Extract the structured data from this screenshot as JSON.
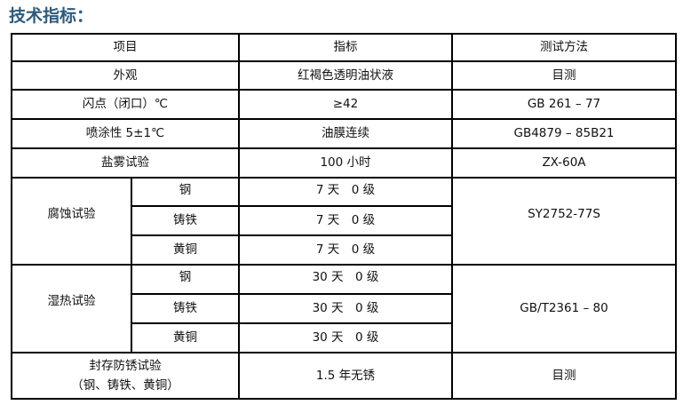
{
  "title": "技术指标：",
  "headers": [
    "项目",
    "指标",
    "测试方法"
  ],
  "rows": {
    "appearance": [
      "外观",
      "红褐色透明油状液",
      "目测"
    ],
    "flash": [
      "闪点（闭口）℃",
      "≥42",
      "GB 261 – 77"
    ],
    "spray": [
      "喷涂性 5±1℃",
      "油膜连续",
      "GB4879 – 85B21"
    ],
    "salt": [
      "盐雾试验",
      "100 小时",
      "ZX-60A"
    ]
  },
  "corrosion": {
    "label": "腐蚀试验",
    "method": "SY2752-77S",
    "items": [
      [
        "钢",
        "7 天　0 级"
      ],
      [
        "铸铁",
        "7 天　0 级"
      ],
      [
        "黄铜",
        "7 天　0 级"
      ]
    ]
  },
  "humidity": {
    "label": "湿热试验",
    "method": "GB/T2361 – 80",
    "items": [
      [
        "钢",
        "30 天　0 级"
      ],
      [
        "铸铁",
        "30 天　0 级"
      ],
      [
        "黄铜",
        "30 天　0 级"
      ]
    ]
  },
  "storage": {
    "label_line1": "封存防锈试验",
    "label_line2": "（钢、铸铁、黄铜）",
    "value": "1.5 年无锈",
    "method": "目测"
  }
}
